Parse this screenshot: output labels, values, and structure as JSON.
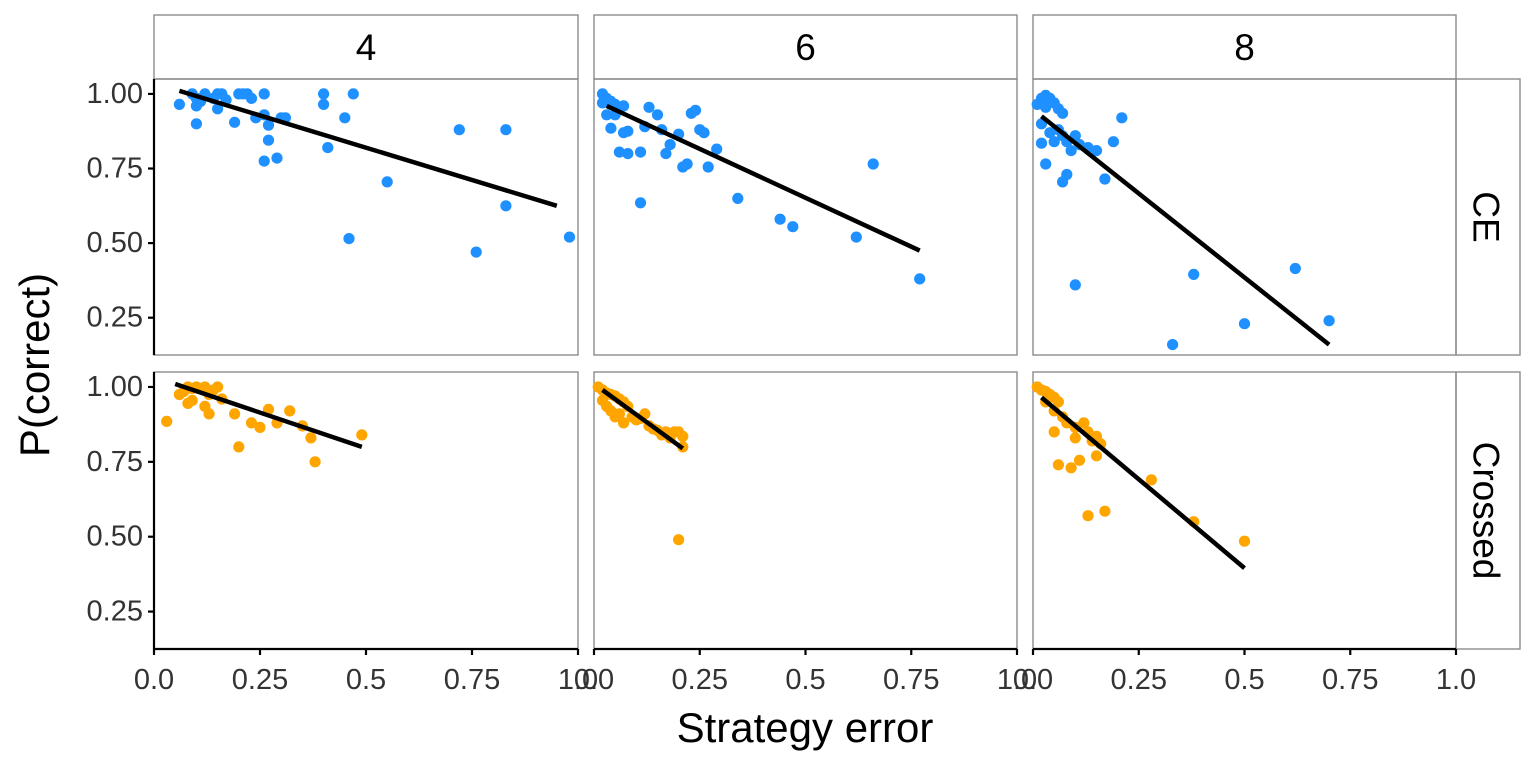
{
  "chart_data": {
    "type": "scatter",
    "title": "",
    "xlabel": "Strategy error",
    "ylabel": "P(correct)",
    "xlim": [
      0,
      1.0
    ],
    "ylim": [
      0.125,
      1.05
    ],
    "x_ticks": [
      0,
      0.25,
      0.5,
      0.75,
      1.0
    ],
    "x_tick_labels": [
      "0.0",
      "0.25",
      "0.5",
      "0.75",
      "1.0"
    ],
    "y_ticks": [
      0.25,
      0.5,
      0.75,
      1.0
    ],
    "y_tick_labels": [
      "0.25",
      "0.50",
      "0.75",
      "1.00"
    ],
    "grid": false,
    "legend": "none",
    "column_facets": [
      "4",
      "6",
      "8"
    ],
    "row_facets": [
      "CE",
      "Crossed"
    ],
    "colors": {
      "CE": "#1e90ff",
      "Crossed": "#ffa500",
      "fit_line": "#000000"
    },
    "panels": [
      {
        "col": "4",
        "row": "CE",
        "fit": [
          [
            0.06,
            1.01
          ],
          [
            0.95,
            0.625
          ]
        ],
        "points": [
          [
            0.06,
            0.965
          ],
          [
            0.09,
            1.0
          ],
          [
            0.1,
            0.985
          ],
          [
            0.11,
            0.975
          ],
          [
            0.12,
            1.0
          ],
          [
            0.1,
            0.9
          ],
          [
            0.1,
            0.96
          ],
          [
            0.15,
            1.0
          ],
          [
            0.14,
            0.985
          ],
          [
            0.15,
            0.95
          ],
          [
            0.17,
            0.98
          ],
          [
            0.16,
            1.0
          ],
          [
            0.2,
            1.0
          ],
          [
            0.21,
            1.0
          ],
          [
            0.22,
            1.0
          ],
          [
            0.23,
            0.985
          ],
          [
            0.24,
            0.92
          ],
          [
            0.19,
            0.905
          ],
          [
            0.26,
            1.0
          ],
          [
            0.26,
            0.93
          ],
          [
            0.27,
            0.895
          ],
          [
            0.27,
            0.845
          ],
          [
            0.26,
            0.775
          ],
          [
            0.29,
            0.785
          ],
          [
            0.3,
            0.92
          ],
          [
            0.31,
            0.92
          ],
          [
            0.4,
            1.0
          ],
          [
            0.4,
            0.965
          ],
          [
            0.41,
            0.82
          ],
          [
            0.45,
            0.92
          ],
          [
            0.47,
            1.0
          ],
          [
            0.46,
            0.515
          ],
          [
            0.55,
            0.705
          ],
          [
            0.72,
            0.88
          ],
          [
            0.76,
            0.47
          ],
          [
            0.83,
            0.88
          ],
          [
            0.83,
            0.625
          ],
          [
            0.98,
            0.52
          ]
        ]
      },
      {
        "col": "6",
        "row": "CE",
        "fit": [
          [
            0.03,
            0.96
          ],
          [
            0.77,
            0.475
          ]
        ],
        "points": [
          [
            0.02,
            1.0
          ],
          [
            0.03,
            0.985
          ],
          [
            0.04,
            0.975
          ],
          [
            0.05,
            0.965
          ],
          [
            0.06,
            0.955
          ],
          [
            0.07,
            0.96
          ],
          [
            0.02,
            0.97
          ],
          [
            0.03,
            0.93
          ],
          [
            0.05,
            0.93
          ],
          [
            0.04,
            0.885
          ],
          [
            0.07,
            0.87
          ],
          [
            0.08,
            0.875
          ],
          [
            0.06,
            0.805
          ],
          [
            0.08,
            0.8
          ],
          [
            0.11,
            0.805
          ],
          [
            0.12,
            0.89
          ],
          [
            0.13,
            0.955
          ],
          [
            0.15,
            0.93
          ],
          [
            0.16,
            0.88
          ],
          [
            0.17,
            0.8
          ],
          [
            0.2,
            0.865
          ],
          [
            0.18,
            0.83
          ],
          [
            0.21,
            0.755
          ],
          [
            0.22,
            0.765
          ],
          [
            0.23,
            0.935
          ],
          [
            0.24,
            0.945
          ],
          [
            0.25,
            0.88
          ],
          [
            0.26,
            0.87
          ],
          [
            0.27,
            0.755
          ],
          [
            0.29,
            0.815
          ],
          [
            0.11,
            0.635
          ],
          [
            0.34,
            0.65
          ],
          [
            0.44,
            0.58
          ],
          [
            0.47,
            0.555
          ],
          [
            0.62,
            0.52
          ],
          [
            0.66,
            0.765
          ],
          [
            0.77,
            0.38
          ]
        ]
      },
      {
        "col": "8",
        "row": "CE",
        "fit": [
          [
            0.02,
            0.925
          ],
          [
            0.7,
            0.16
          ]
        ],
        "points": [
          [
            0.01,
            0.965
          ],
          [
            0.02,
            0.985
          ],
          [
            0.03,
            0.995
          ],
          [
            0.04,
            0.985
          ],
          [
            0.05,
            0.97
          ],
          [
            0.06,
            0.95
          ],
          [
            0.07,
            0.935
          ],
          [
            0.03,
            0.955
          ],
          [
            0.02,
            0.9
          ],
          [
            0.04,
            0.87
          ],
          [
            0.05,
            0.84
          ],
          [
            0.06,
            0.88
          ],
          [
            0.07,
            0.86
          ],
          [
            0.08,
            0.84
          ],
          [
            0.09,
            0.81
          ],
          [
            0.1,
            0.86
          ],
          [
            0.11,
            0.83
          ],
          [
            0.02,
            0.835
          ],
          [
            0.03,
            0.765
          ],
          [
            0.07,
            0.705
          ],
          [
            0.08,
            0.73
          ],
          [
            0.13,
            0.82
          ],
          [
            0.15,
            0.81
          ],
          [
            0.17,
            0.715
          ],
          [
            0.19,
            0.84
          ],
          [
            0.21,
            0.92
          ],
          [
            0.1,
            0.36
          ],
          [
            0.33,
            0.16
          ],
          [
            0.38,
            0.395
          ],
          [
            0.5,
            0.23
          ],
          [
            0.62,
            0.415
          ],
          [
            0.7,
            0.24
          ]
        ]
      },
      {
        "col": "4",
        "row": "Crossed",
        "fit": [
          [
            0.05,
            1.01
          ],
          [
            0.49,
            0.8
          ]
        ],
        "points": [
          [
            0.03,
            0.885
          ],
          [
            0.06,
            0.975
          ],
          [
            0.07,
            0.985
          ],
          [
            0.08,
            1.0
          ],
          [
            0.09,
            0.995
          ],
          [
            0.1,
            1.0
          ],
          [
            0.11,
            0.995
          ],
          [
            0.12,
            1.0
          ],
          [
            0.13,
            0.975
          ],
          [
            0.14,
            0.99
          ],
          [
            0.15,
            1.0
          ],
          [
            0.08,
            0.945
          ],
          [
            0.09,
            0.955
          ],
          [
            0.12,
            0.935
          ],
          [
            0.13,
            0.91
          ],
          [
            0.16,
            0.96
          ],
          [
            0.19,
            0.91
          ],
          [
            0.2,
            0.8
          ],
          [
            0.23,
            0.88
          ],
          [
            0.25,
            0.865
          ],
          [
            0.27,
            0.925
          ],
          [
            0.29,
            0.88
          ],
          [
            0.32,
            0.92
          ],
          [
            0.35,
            0.87
          ],
          [
            0.37,
            0.83
          ],
          [
            0.38,
            0.75
          ],
          [
            0.49,
            0.84
          ]
        ]
      },
      {
        "col": "6",
        "row": "Crossed",
        "fit": [
          [
            0.02,
            0.99
          ],
          [
            0.21,
            0.795
          ]
        ],
        "points": [
          [
            0.01,
            1.0
          ],
          [
            0.02,
            0.99
          ],
          [
            0.03,
            0.98
          ],
          [
            0.04,
            0.975
          ],
          [
            0.05,
            0.97
          ],
          [
            0.06,
            0.96
          ],
          [
            0.07,
            0.95
          ],
          [
            0.02,
            0.955
          ],
          [
            0.03,
            0.935
          ],
          [
            0.04,
            0.92
          ],
          [
            0.05,
            0.9
          ],
          [
            0.06,
            0.91
          ],
          [
            0.07,
            0.88
          ],
          [
            0.08,
            0.935
          ],
          [
            0.09,
            0.9
          ],
          [
            0.1,
            0.89
          ],
          [
            0.11,
            0.895
          ],
          [
            0.12,
            0.91
          ],
          [
            0.13,
            0.87
          ],
          [
            0.14,
            0.86
          ],
          [
            0.15,
            0.855
          ],
          [
            0.16,
            0.84
          ],
          [
            0.17,
            0.85
          ],
          [
            0.18,
            0.83
          ],
          [
            0.19,
            0.85
          ],
          [
            0.2,
            0.85
          ],
          [
            0.21,
            0.835
          ],
          [
            0.21,
            0.8
          ],
          [
            0.2,
            0.49
          ]
        ]
      },
      {
        "col": "8",
        "row": "Crossed",
        "fit": [
          [
            0.02,
            0.965
          ],
          [
            0.5,
            0.395
          ]
        ],
        "points": [
          [
            0.01,
            1.0
          ],
          [
            0.02,
            0.99
          ],
          [
            0.03,
            0.985
          ],
          [
            0.04,
            0.975
          ],
          [
            0.05,
            0.965
          ],
          [
            0.06,
            0.95
          ],
          [
            0.03,
            0.95
          ],
          [
            0.05,
            0.92
          ],
          [
            0.07,
            0.9
          ],
          [
            0.08,
            0.88
          ],
          [
            0.1,
            0.865
          ],
          [
            0.12,
            0.88
          ],
          [
            0.13,
            0.85
          ],
          [
            0.14,
            0.82
          ],
          [
            0.15,
            0.835
          ],
          [
            0.16,
            0.81
          ],
          [
            0.1,
            0.83
          ],
          [
            0.05,
            0.85
          ],
          [
            0.06,
            0.74
          ],
          [
            0.09,
            0.73
          ],
          [
            0.11,
            0.755
          ],
          [
            0.15,
            0.77
          ],
          [
            0.14,
            0.83
          ],
          [
            0.13,
            0.57
          ],
          [
            0.17,
            0.585
          ],
          [
            0.28,
            0.69
          ],
          [
            0.38,
            0.55
          ],
          [
            0.5,
            0.485
          ]
        ]
      }
    ]
  }
}
